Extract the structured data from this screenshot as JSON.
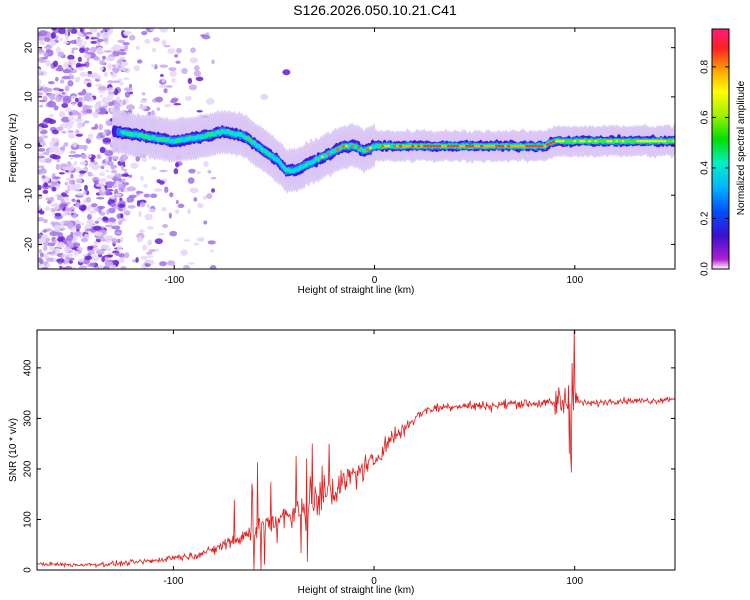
{
  "title": "S126.2026.050.10.21.C41",
  "top_chart_data": {
    "type": "heatmap",
    "xlabel": "Height of straight line (km)",
    "ylabel": "Frequency (Hz)",
    "xlim": [
      -168,
      150
    ],
    "ylim": [
      -25,
      24
    ],
    "xticks": [
      -100,
      0,
      100
    ],
    "xtick_labels": [
      "-100",
      "0",
      "100"
    ],
    "yticks": [
      -20,
      -10,
      0,
      10,
      20
    ],
    "ytick_labels": [
      "-20",
      "-10",
      "0",
      "10",
      "20"
    ],
    "colorbar": {
      "label": "Normalized spectral amplitude",
      "range": [
        0,
        0.95
      ],
      "ticks": [
        0,
        0.2,
        0.4,
        0.6,
        0.8
      ],
      "tick_labels": [
        "0.0",
        "0.2",
        "0.4",
        "0.6",
        "0.8"
      ]
    },
    "ridge": {
      "x": [
        -130,
        -115,
        -100,
        -85,
        -75,
        -65,
        -55,
        -48,
        -44,
        -40,
        -35,
        -30,
        -25,
        -20,
        -15,
        -10,
        -5,
        0,
        10,
        20,
        40,
        60,
        80,
        85,
        90,
        100,
        120,
        150
      ],
      "freq": [
        3,
        2,
        1,
        2,
        3,
        2,
        -1,
        -3,
        -5,
        -5,
        -4,
        -3,
        -2,
        -1,
        0,
        0,
        -1,
        0,
        0,
        0,
        0,
        0,
        0,
        0,
        1,
        1,
        1,
        1
      ]
    }
  },
  "bottom_chart_data": {
    "type": "line",
    "xlabel": "Height of straight line (km)",
    "ylabel": "SNR (10 * v/v)",
    "xlim": [
      -168,
      150
    ],
    "ylim": [
      0,
      475
    ],
    "xticks": [
      -100,
      0,
      100
    ],
    "xtick_labels": [
      "-100",
      "0",
      "100"
    ],
    "yticks": [
      0,
      100,
      200,
      300,
      400
    ],
    "ytick_labels": [
      "0",
      "100",
      "200",
      "300",
      "400"
    ],
    "series": [
      {
        "name": "SNR",
        "color": "#e02020",
        "x": [
          -168,
          -150,
          -130,
          -110,
          -100,
          -90,
          -80,
          -70,
          -60,
          -50,
          -40,
          -35,
          -30,
          -25,
          -20,
          -15,
          -10,
          -5,
          0,
          5,
          10,
          15,
          20,
          25,
          30,
          40,
          50,
          60,
          70,
          80,
          90,
          95,
          98,
          100,
          105,
          110,
          120,
          130,
          140,
          150
        ],
        "values": [
          12,
          10,
          12,
          18,
          25,
          28,
          40,
          60,
          75,
          95,
          110,
          120,
          135,
          150,
          160,
          175,
          190,
          200,
          215,
          245,
          265,
          280,
          300,
          315,
          320,
          325,
          325,
          325,
          330,
          330,
          330,
          335,
          340,
          335,
          330,
          330,
          335,
          335,
          335,
          340
        ]
      }
    ]
  }
}
